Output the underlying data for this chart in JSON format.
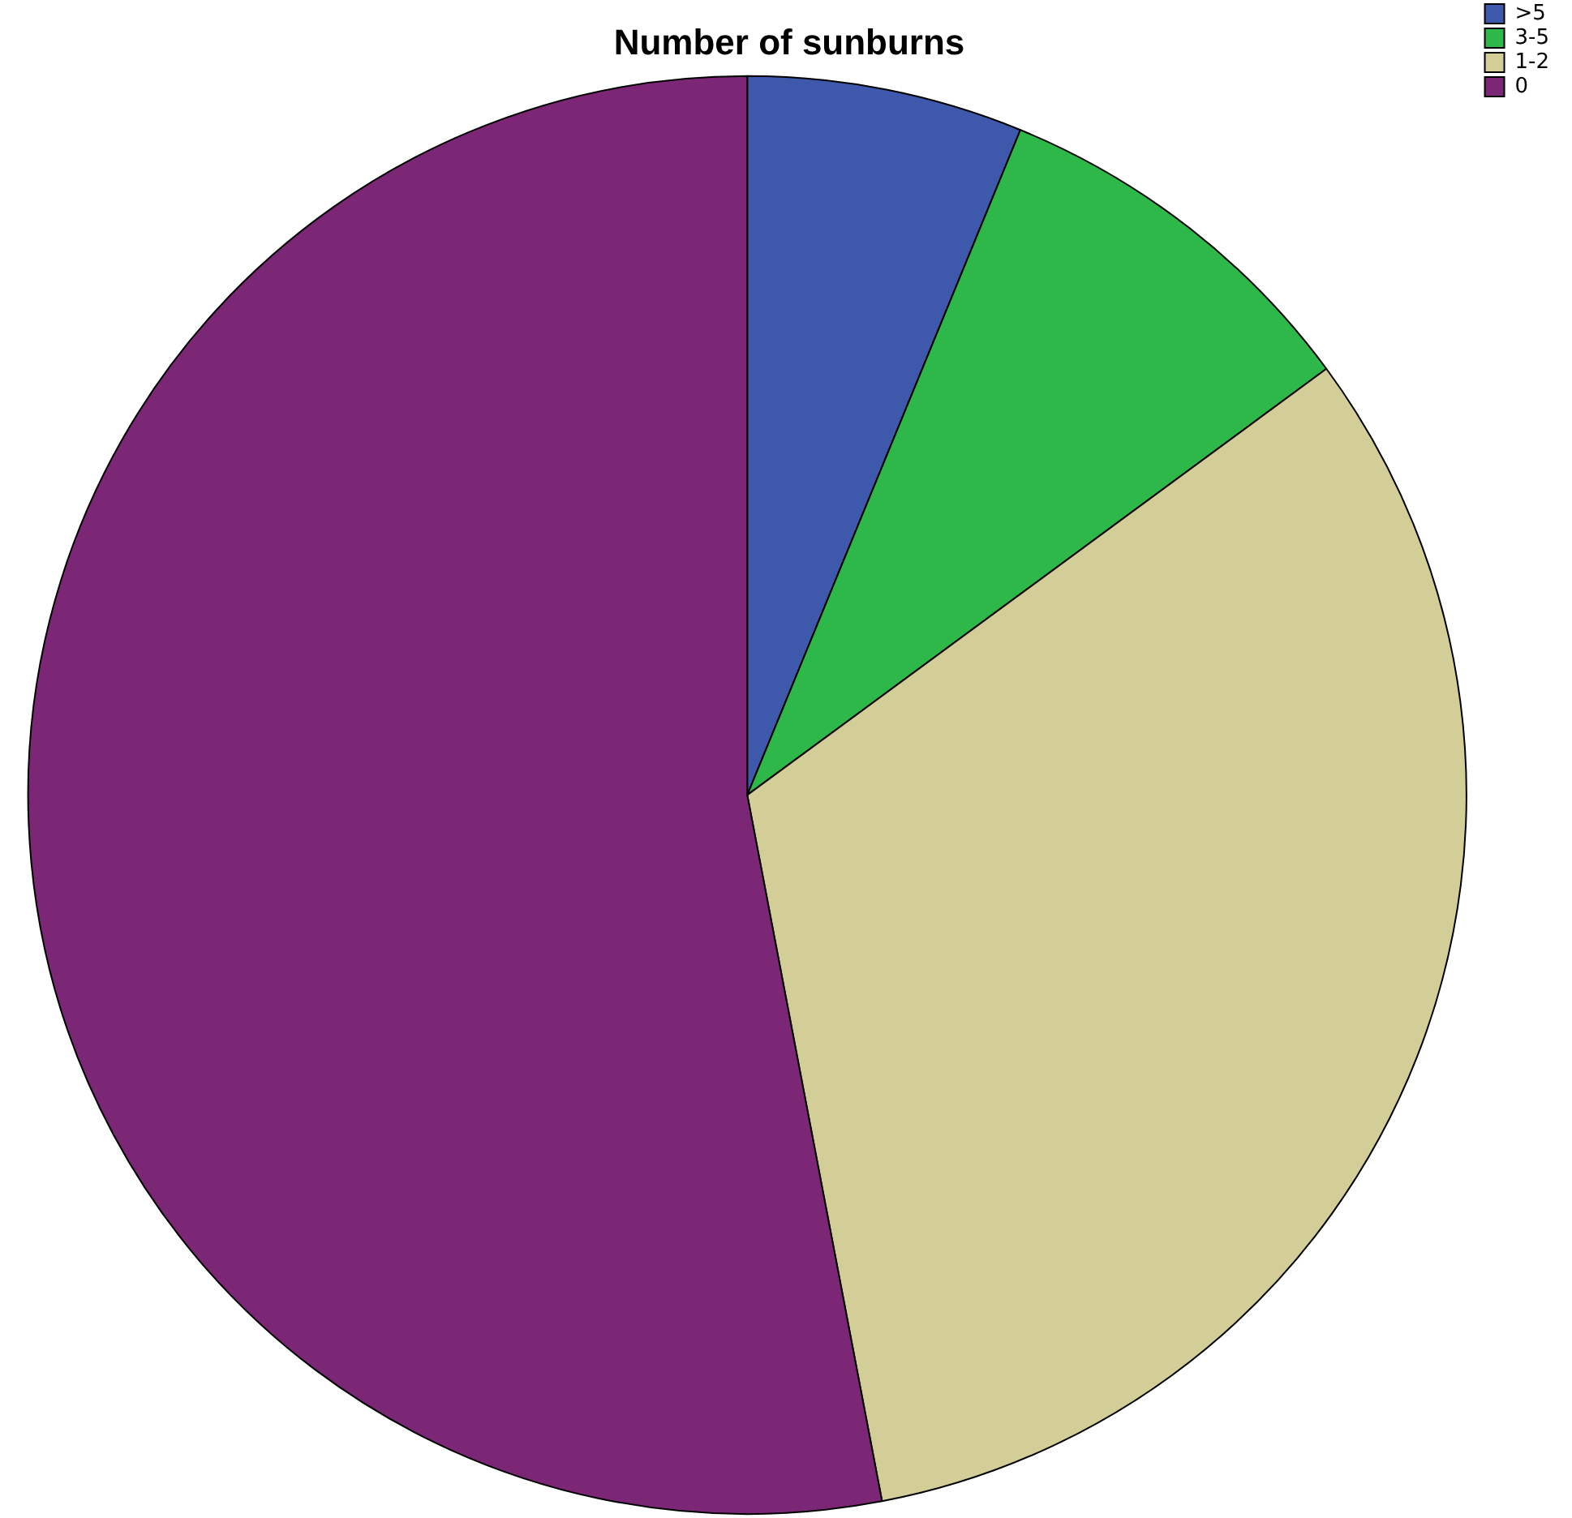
{
  "chart_data": {
    "type": "pie",
    "title": "Number of sunburns",
    "categories": [
      ">5",
      "3-5",
      "1-2",
      "0"
    ],
    "values": [
      6.2,
      8.7,
      32.1,
      53.0
    ],
    "colors": [
      "#3e58ac",
      "#2fb84a",
      "#d3cd98",
      "#7b2775"
    ],
    "legend": "top right"
  }
}
